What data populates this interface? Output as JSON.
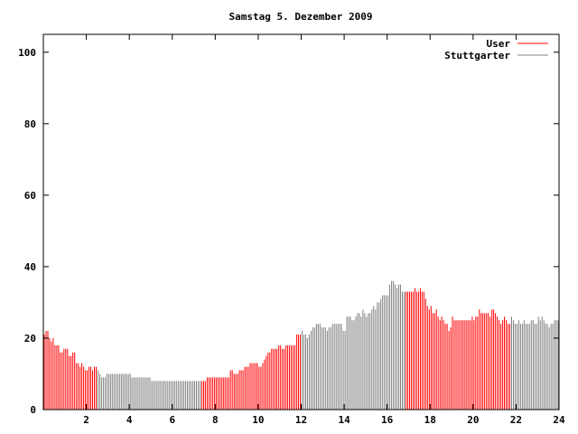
{
  "chart_data": {
    "type": "bar",
    "title": "Samstag 5. Dezember 2009",
    "xlabel": "",
    "ylabel": "",
    "xlim": [
      0,
      24
    ],
    "ylim": [
      0,
      105
    ],
    "x_ticks": [
      "2",
      "4",
      "6",
      "8",
      "10",
      "12",
      "14",
      "16",
      "18",
      "20",
      "22",
      "24"
    ],
    "y_ticks": [
      "0",
      "20",
      "40",
      "60",
      "80",
      "100"
    ],
    "interval_minutes": 5,
    "legend_position": "top-right",
    "series": [
      {
        "name": "User",
        "color": "#ff0000",
        "hour_ranges": [
          [
            0,
            2.5
          ],
          [
            7.33,
            12
          ],
          [
            16.83,
            21.67
          ]
        ]
      },
      {
        "name": "Stuttgarter",
        "color": "#808080",
        "hour_ranges": [
          [
            2.5,
            7.33
          ],
          [
            12,
            16.83
          ],
          [
            21.67,
            24
          ]
        ]
      }
    ],
    "values": [
      21,
      22,
      22,
      20,
      19,
      20,
      18,
      18,
      18,
      16,
      16,
      17,
      17,
      17,
      15,
      15,
      16,
      16,
      13,
      13,
      12,
      13,
      12,
      11,
      11,
      12,
      12,
      11,
      12,
      12,
      11,
      10,
      9,
      9,
      9,
      10,
      10,
      10,
      10,
      10,
      10,
      10,
      10,
      10,
      10,
      10,
      10,
      10,
      10,
      9,
      9,
      9,
      9,
      9,
      9,
      9,
      9,
      9,
      9,
      9,
      8,
      8,
      8,
      8,
      8,
      8,
      8,
      8,
      8,
      8,
      8,
      8,
      8,
      8,
      8,
      8,
      8,
      8,
      8,
      8,
      8,
      8,
      8,
      8,
      8,
      8,
      8,
      8,
      8,
      8,
      8,
      9,
      9,
      9,
      9,
      9,
      9,
      9,
      9,
      9,
      9,
      9,
      9,
      9,
      11,
      11,
      10,
      10,
      10,
      11,
      11,
      11,
      12,
      12,
      12,
      13,
      13,
      13,
      13,
      13,
      12,
      12,
      13,
      14,
      15,
      16,
      16,
      17,
      17,
      17,
      17,
      18,
      18,
      17,
      17,
      18,
      18,
      18,
      18,
      18,
      18,
      21,
      21,
      21,
      22,
      21,
      21,
      20,
      21,
      22,
      23,
      23,
      24,
      24,
      24,
      23,
      23,
      23,
      22,
      23,
      23,
      24,
      24,
      24,
      24,
      24,
      24,
      22,
      22,
      26,
      26,
      26,
      25,
      25,
      26,
      27,
      27,
      26,
      28,
      27,
      26,
      27,
      27,
      28,
      29,
      28,
      30,
      30,
      31,
      32,
      32,
      32,
      32,
      35,
      36,
      36,
      35,
      34,
      35,
      35,
      33,
      33,
      33,
      33,
      33,
      33,
      33,
      34,
      33,
      33,
      34,
      33,
      33,
      31,
      29,
      28,
      29,
      27,
      27,
      28,
      26,
      25,
      26,
      25,
      24,
      24,
      22,
      23,
      26,
      25,
      25,
      25,
      25,
      25,
      25,
      25,
      25,
      25,
      25,
      26,
      25,
      26,
      26,
      28,
      27,
      27,
      27,
      27,
      27,
      26,
      28,
      28,
      27,
      26,
      25,
      24,
      25,
      26,
      25,
      24,
      24,
      26,
      25,
      24,
      24,
      25,
      24,
      24,
      25,
      24,
      24,
      24,
      25,
      25,
      24,
      24,
      26,
      25,
      26,
      25,
      24,
      24,
      23,
      24,
      24,
      25,
      25,
      25
    ]
  }
}
